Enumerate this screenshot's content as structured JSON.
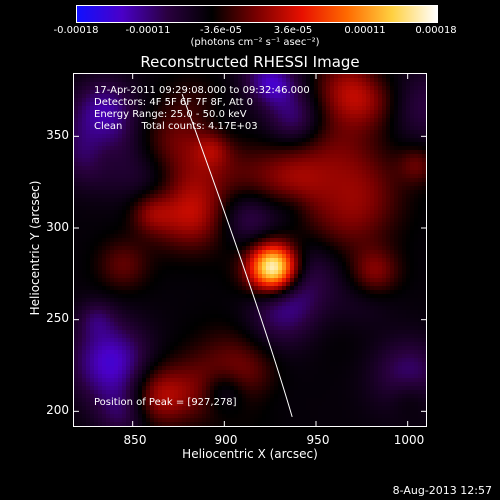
{
  "colorbar": {
    "tick_labels": [
      "-0.00018",
      "-0.00011",
      "-3.6e-05",
      "3.6e-05",
      "0.00011",
      "0.00018"
    ],
    "unit": "(photons cm⁻² s⁻¹ asec⁻²)",
    "stops": [
      "#1010ff",
      "#4a00c8",
      "#2a0040",
      "#000000",
      "#7a0000",
      "#e81000",
      "#ff6a00",
      "#ffd040",
      "#ffffff"
    ]
  },
  "title": "Reconstructed RHESSI Image",
  "info": {
    "time": "17-Apr-2011 09:29:08.000 to 09:32:46.000",
    "detectors": "Detectors: 4F 5F 6F 7F 8F, Att 0",
    "energy": "Energy Range: 25.0 - 50.0 keV",
    "clean": "Clean      Total counts: 4.17E+03",
    "peak": "Position of Peak = [927,278]"
  },
  "axes": {
    "xlabel": "Heliocentric X (arcsec)",
    "ylabel": "Heliocentric Y (arcsec)",
    "x_ticks": [
      "850",
      "900",
      "950",
      "1000"
    ],
    "y_ticks": [
      "350",
      "300",
      "250",
      "200"
    ]
  },
  "footer_date": "8-Aug-2013 12:57",
  "image": {
    "peak_xy": [
      927,
      278
    ],
    "limb_curve": [
      [
        877,
        373
      ],
      [
        920,
        255
      ],
      [
        937,
        197
      ]
    ]
  }
}
